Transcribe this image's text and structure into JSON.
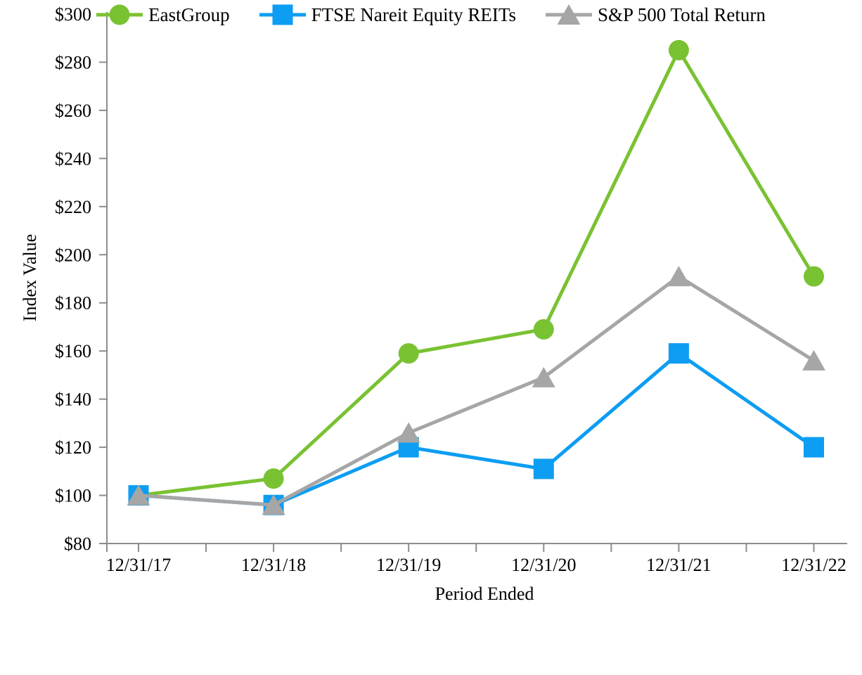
{
  "figure": {
    "background": "#FFFFFF"
  },
  "chart_data": {
    "type": "line",
    "title": "",
    "xlabel": "Period Ended",
    "ylabel": "Index Value",
    "categories": [
      "12/31/17",
      "12/31/18",
      "12/31/19",
      "12/31/20",
      "12/31/21",
      "12/31/22"
    ],
    "series": [
      {
        "name": "EastGroup",
        "marker": "circle",
        "color": "#79C232",
        "values": [
          100,
          107,
          159,
          169,
          285,
          191
        ]
      },
      {
        "name": "FTSE Nareit Equity REITs",
        "marker": "square",
        "color": "#0D9DF2",
        "values": [
          100,
          96,
          120,
          111,
          159,
          120
        ]
      },
      {
        "name": "S&P 500 Total Return",
        "marker": "triangle",
        "color": "#A6A6A6",
        "values": [
          100,
          96,
          126,
          149,
          191,
          156
        ]
      }
    ],
    "ylim": [
      80,
      300
    ],
    "ytick_step": 20,
    "ytick_labels": [
      "$80",
      "$100",
      "$120",
      "$140",
      "$160",
      "$180",
      "$200",
      "$220",
      "$240",
      "$260",
      "$280",
      "$300"
    ],
    "grid": false,
    "legend_position": "bottom",
    "axis_color": "#8C8C8C",
    "text_color": "#000000"
  }
}
